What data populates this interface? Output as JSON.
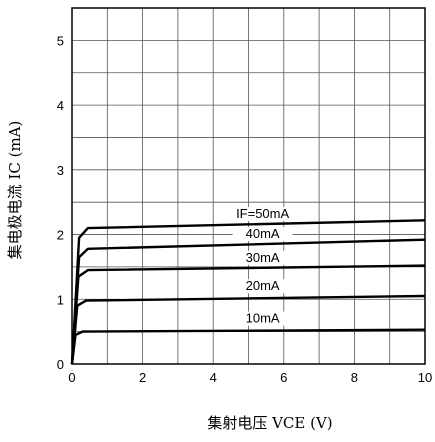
{
  "chart_data": {
    "type": "line",
    "xlabel": "集射电压 VCE (V)",
    "ylabel": "集电极电流 IC (mA)",
    "xlim": [
      0,
      10
    ],
    "ylim": [
      0,
      5.5
    ],
    "x_ticks": [
      "0",
      "2",
      "4",
      "6",
      "8",
      "10"
    ],
    "y_ticks": [
      "0",
      "1",
      "2",
      "3",
      "4",
      "5"
    ],
    "grid": true,
    "series": [
      {
        "name": "IF=50mA",
        "x": [
          0,
          0.2,
          0.45,
          10
        ],
        "y": [
          0,
          1.95,
          2.1,
          2.22
        ]
      },
      {
        "name": "40mA",
        "x": [
          0,
          0.2,
          0.45,
          10
        ],
        "y": [
          0,
          1.65,
          1.78,
          1.92
        ]
      },
      {
        "name": "30mA",
        "x": [
          0,
          0.18,
          0.45,
          10
        ],
        "y": [
          0,
          1.35,
          1.45,
          1.52
        ]
      },
      {
        "name": "20mA",
        "x": [
          0,
          0.15,
          0.4,
          10
        ],
        "y": [
          0,
          0.9,
          0.98,
          1.05
        ]
      },
      {
        "name": "10mA",
        "x": [
          0,
          0.1,
          0.3,
          10
        ],
        "y": [
          0,
          0.45,
          0.5,
          0.53
        ]
      }
    ]
  }
}
